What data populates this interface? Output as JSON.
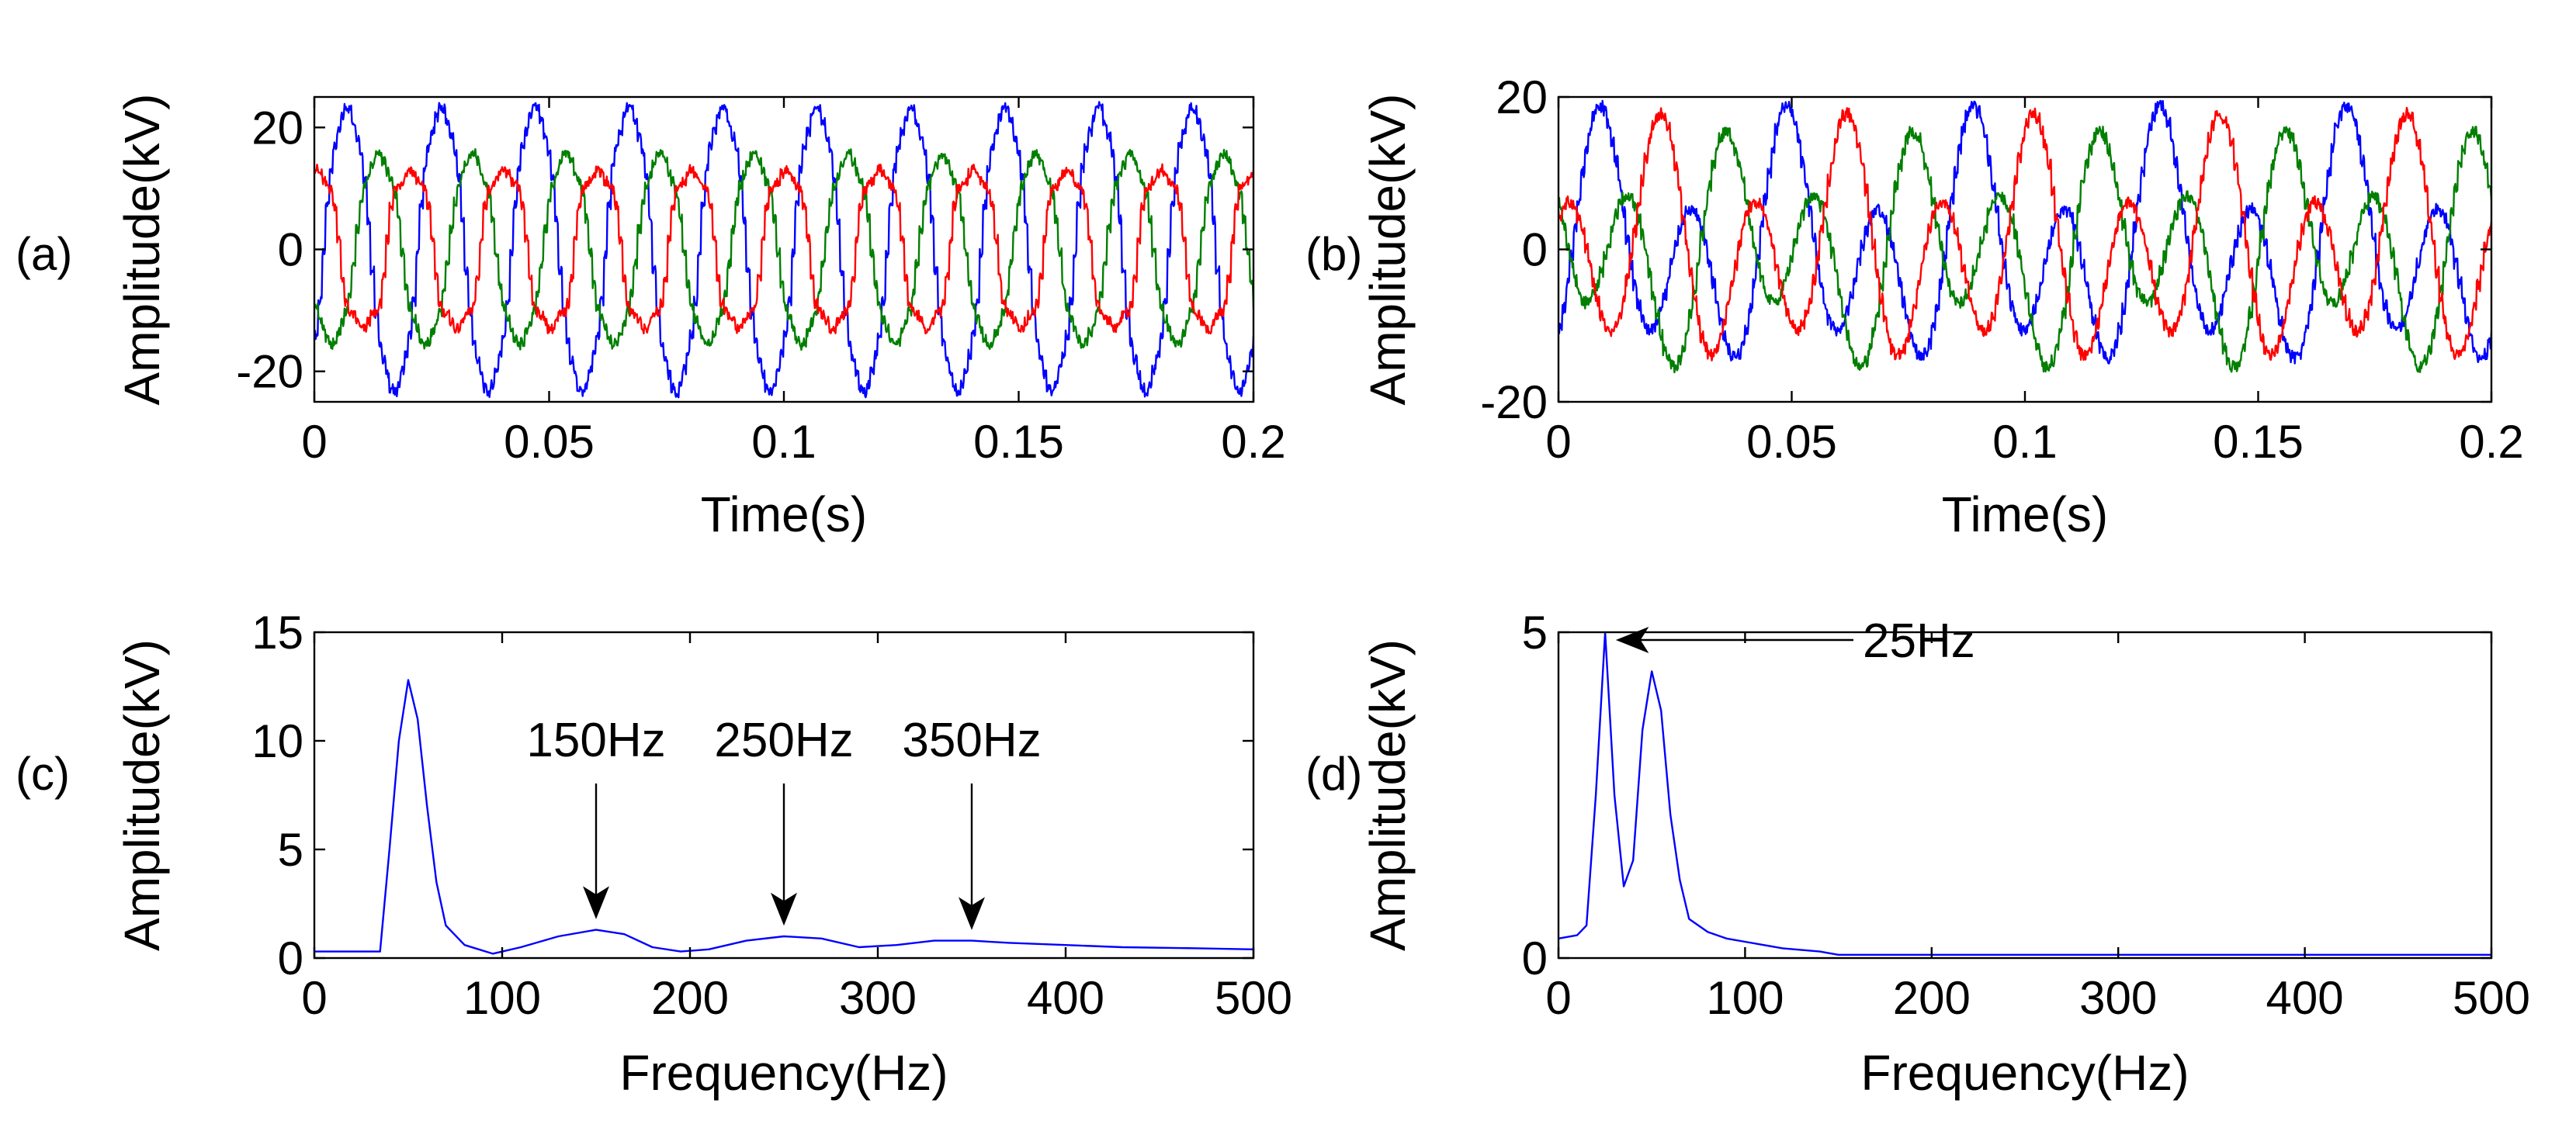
{
  "chart_data": [
    {
      "panel": "(a)",
      "type": "line",
      "xlabel": "Time(s)",
      "ylabel": "Amplitude(kV)",
      "xlim": [
        0,
        0.2
      ],
      "ylim": [
        -25,
        25
      ],
      "xticks": [
        0,
        0.05,
        0.1,
        0.15,
        0.2
      ],
      "xtick_labels": [
        "0",
        "0.05",
        "0.1",
        "0.15",
        "0.2"
      ],
      "yticks": [
        -20,
        0,
        20
      ],
      "ytick_labels": [
        "-20",
        "0",
        "20"
      ],
      "grid": false,
      "series": [
        {
          "name": "blue phase",
          "color": "#0000ff",
          "frequency_hz": 50,
          "amplitude_kv": 24,
          "phase_deg": -30,
          "harmonic3_kv": 1.5,
          "harmonic5_kv": 1.0
        },
        {
          "name": "green phase",
          "color": "#007f00",
          "frequency_hz": 50,
          "amplitude_kv": 16,
          "phase_deg": -150,
          "harmonic3_kv": 1.0,
          "harmonic5_kv": 0.8
        },
        {
          "name": "red phase",
          "color": "#ff0000",
          "frequency_hz": 50,
          "amplitude_kv": 14,
          "phase_deg": 90,
          "harmonic3_kv": 2.0,
          "harmonic5_kv": 1.2
        }
      ]
    },
    {
      "panel": "(b)",
      "type": "line",
      "xlabel": "Time(s)",
      "ylabel": "Amplitude(kV)",
      "xlim": [
        0,
        0.2
      ],
      "ylim": [
        -20,
        20
      ],
      "xticks": [
        0,
        0.05,
        0.1,
        0.15,
        0.2
      ],
      "xtick_labels": [
        "0",
        "0.05",
        "0.1",
        "0.15",
        "0.2"
      ],
      "yticks": [
        -20,
        0,
        20
      ],
      "ytick_labels": [
        "-20",
        "0",
        "20"
      ],
      "grid": false,
      "series": [
        {
          "name": "blue phase",
          "color": "#0000ff",
          "components": [
            {
              "frequency_hz": 50,
              "amplitude_kv": 12,
              "phase_deg": -60
            },
            {
              "frequency_hz": 25,
              "amplitude_kv": 7,
              "phase_deg": 0
            }
          ]
        },
        {
          "name": "green phase",
          "color": "#007f00",
          "components": [
            {
              "frequency_hz": 50,
              "amplitude_kv": 11,
              "phase_deg": 180
            },
            {
              "frequency_hz": 25,
              "amplitude_kv": 6,
              "phase_deg": 90
            }
          ]
        },
        {
          "name": "red phase",
          "color": "#ff0000",
          "components": [
            {
              "frequency_hz": 50,
              "amplitude_kv": 12,
              "phase_deg": 60
            },
            {
              "frequency_hz": 25,
              "amplitude_kv": 6,
              "phase_deg": -90
            }
          ]
        }
      ]
    },
    {
      "panel": "(c)",
      "type": "line",
      "xlabel": "Frequency(Hz)",
      "ylabel": "Amplitude(kV)",
      "xlim": [
        0,
        500
      ],
      "ylim": [
        0,
        15
      ],
      "xticks": [
        0,
        100,
        200,
        300,
        400,
        500
      ],
      "xtick_labels": [
        "0",
        "100",
        "200",
        "300",
        "400",
        "500"
      ],
      "yticks": [
        0,
        5,
        10,
        15
      ],
      "ytick_labels": [
        "0",
        "5",
        "10",
        "15"
      ],
      "grid": false,
      "series": [
        {
          "name": "spectrum",
          "color": "#0000ff",
          "x": [
            0,
            20,
            35,
            40,
            45,
            50,
            55,
            60,
            65,
            70,
            80,
            95,
            110,
            130,
            150,
            165,
            180,
            195,
            210,
            230,
            250,
            270,
            290,
            310,
            330,
            350,
            370,
            400,
            430,
            470,
            500
          ],
          "y": [
            0.3,
            0.3,
            0.3,
            5,
            10,
            12.8,
            11,
            7,
            3.5,
            1.5,
            0.6,
            0.2,
            0.5,
            1.0,
            1.3,
            1.1,
            0.5,
            0.3,
            0.4,
            0.8,
            1.0,
            0.9,
            0.5,
            0.6,
            0.8,
            0.8,
            0.7,
            0.6,
            0.5,
            0.45,
            0.4
          ]
        }
      ],
      "annotations": [
        {
          "text": "150Hz",
          "x": 150,
          "y": 1.3
        },
        {
          "text": "250Hz",
          "x": 250,
          "y": 1.0
        },
        {
          "text": "350Hz",
          "x": 350,
          "y": 0.8
        }
      ]
    },
    {
      "panel": "(d)",
      "type": "line",
      "xlabel": "Frequency(Hz)",
      "ylabel": "Amplitude(kV)",
      "xlim": [
        0,
        500
      ],
      "ylim": [
        0,
        5
      ],
      "xticks": [
        0,
        100,
        200,
        300,
        400,
        500
      ],
      "xtick_labels": [
        "0",
        "100",
        "200",
        "300",
        "400",
        "500"
      ],
      "yticks": [
        0,
        5
      ],
      "ytick_labels": [
        "0",
        "5"
      ],
      "grid": false,
      "series": [
        {
          "name": "spectrum",
          "color": "#0000ff",
          "x": [
            0,
            10,
            15,
            20,
            25,
            30,
            35,
            40,
            45,
            50,
            55,
            60,
            65,
            70,
            80,
            90,
            100,
            110,
            120,
            140,
            150,
            500
          ],
          "y": [
            0.3,
            0.35,
            0.5,
            2.5,
            5.0,
            2.5,
            1.1,
            1.5,
            3.5,
            4.4,
            3.8,
            2.2,
            1.2,
            0.6,
            0.4,
            0.3,
            0.25,
            0.2,
            0.15,
            0.1,
            0.05,
            0.05
          ]
        }
      ],
      "annotations": [
        {
          "text": "25Hz",
          "x": 25,
          "y": 5.0
        }
      ]
    }
  ]
}
